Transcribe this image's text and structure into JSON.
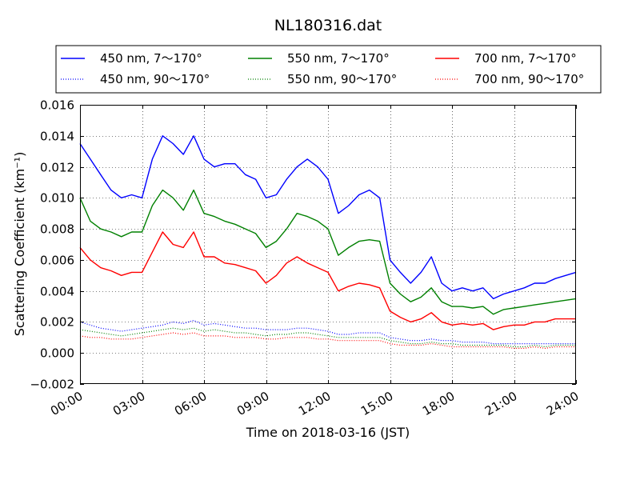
{
  "chart_data": {
    "type": "line",
    "title": "NL180316.dat",
    "xlabel": "Time on 2018-03-16 (JST)",
    "ylabel": "Scattering Coefficient (km⁻¹)",
    "xlim": [
      "00:00",
      "24:00"
    ],
    "ylim": [
      -0.002,
      0.016
    ],
    "x_ticks": [
      "00:00",
      "03:00",
      "06:00",
      "09:00",
      "12:00",
      "15:00",
      "18:00",
      "21:00",
      "24:00"
    ],
    "y_ticks": [
      "−0.002",
      "0.000",
      "0.002",
      "0.004",
      "0.006",
      "0.008",
      "0.010",
      "0.012",
      "0.014",
      "0.016"
    ],
    "grid": true,
    "legend_position": "top",
    "colors": {
      "450": "#0000ff",
      "550": "#008000",
      "700": "#ff0000"
    },
    "x": [
      "00:00",
      "00:30",
      "01:00",
      "01:30",
      "02:00",
      "02:30",
      "03:00",
      "03:30",
      "04:00",
      "04:30",
      "05:00",
      "05:30",
      "06:00",
      "06:30",
      "07:00",
      "07:30",
      "08:00",
      "08:30",
      "09:00",
      "09:30",
      "10:00",
      "10:30",
      "11:00",
      "11:30",
      "12:00",
      "12:30",
      "13:00",
      "13:30",
      "14:00",
      "14:30",
      "15:00",
      "15:30",
      "16:00",
      "16:30",
      "17:00",
      "17:30",
      "18:00",
      "18:30",
      "19:00",
      "19:30",
      "20:00",
      "20:30",
      "21:00",
      "21:30",
      "22:00",
      "22:30",
      "23:00",
      "23:30",
      "24:00"
    ],
    "series": [
      {
        "name": "450 nm, 7～170°",
        "style": "solid",
        "color": "#0000ff",
        "values": [
          0.0135,
          0.0125,
          0.0115,
          0.0105,
          0.01,
          0.0102,
          0.01,
          0.0125,
          0.014,
          0.0135,
          0.0128,
          0.014,
          0.0125,
          0.012,
          0.0122,
          0.0122,
          0.0115,
          0.0112,
          0.01,
          0.0102,
          0.0112,
          0.012,
          0.0125,
          0.012,
          0.0112,
          0.009,
          0.0095,
          0.0102,
          0.0105,
          0.01,
          0.006,
          0.0052,
          0.0045,
          0.0052,
          0.0062,
          0.0045,
          0.004,
          0.0042,
          0.004,
          0.0042,
          0.0035,
          0.0038,
          0.004,
          0.0042,
          0.0045,
          0.0045,
          0.0048,
          0.005,
          0.0052
        ]
      },
      {
        "name": "450 nm, 90～170°",
        "style": "dotted",
        "color": "#0000ff",
        "values": [
          0.002,
          0.0018,
          0.0016,
          0.0015,
          0.0014,
          0.0015,
          0.0016,
          0.0017,
          0.0018,
          0.002,
          0.0019,
          0.0021,
          0.0018,
          0.0019,
          0.0018,
          0.0017,
          0.0016,
          0.0016,
          0.0015,
          0.0015,
          0.0015,
          0.0016,
          0.0016,
          0.0015,
          0.0014,
          0.0012,
          0.0012,
          0.0013,
          0.0013,
          0.0013,
          0.001,
          0.0009,
          0.0008,
          0.0008,
          0.0009,
          0.0008,
          0.0008,
          0.0007,
          0.0007,
          0.0007,
          0.0006,
          0.0006,
          0.0006,
          0.0006,
          0.0006,
          0.0006,
          0.0006,
          0.0006,
          0.0006
        ]
      },
      {
        "name": "550 nm, 7～170°",
        "style": "solid",
        "color": "#008000",
        "values": [
          0.01,
          0.0085,
          0.008,
          0.0078,
          0.0075,
          0.0078,
          0.0078,
          0.0095,
          0.0105,
          0.01,
          0.0092,
          0.0105,
          0.009,
          0.0088,
          0.0085,
          0.0083,
          0.008,
          0.0077,
          0.0068,
          0.0072,
          0.008,
          0.009,
          0.0088,
          0.0085,
          0.008,
          0.0063,
          0.0068,
          0.0072,
          0.0073,
          0.0072,
          0.0045,
          0.0038,
          0.0033,
          0.0036,
          0.0042,
          0.0033,
          0.003,
          0.003,
          0.0029,
          0.003,
          0.0025,
          0.0028,
          0.0029,
          0.003,
          0.0031,
          0.0032,
          0.0033,
          0.0034,
          0.0035
        ]
      },
      {
        "name": "550 nm, 90～170°",
        "style": "dotted",
        "color": "#008000",
        "values": [
          0.0015,
          0.0014,
          0.0013,
          0.0012,
          0.0011,
          0.0012,
          0.0013,
          0.0014,
          0.0015,
          0.0016,
          0.0015,
          0.0016,
          0.0014,
          0.0015,
          0.0014,
          0.0013,
          0.0013,
          0.0012,
          0.0011,
          0.0012,
          0.0012,
          0.0013,
          0.0013,
          0.0012,
          0.0011,
          0.001,
          0.001,
          0.001,
          0.001,
          0.001,
          0.0008,
          0.0007,
          0.0006,
          0.0006,
          0.0007,
          0.0006,
          0.0006,
          0.0005,
          0.0005,
          0.0005,
          0.0005,
          0.0005,
          0.0004,
          0.0004,
          0.0005,
          0.0004,
          0.0005,
          0.0005,
          0.0005
        ]
      },
      {
        "name": "700 nm, 7～170°",
        "style": "solid",
        "color": "#ff0000",
        "values": [
          0.0068,
          0.006,
          0.0055,
          0.0053,
          0.005,
          0.0052,
          0.0052,
          0.0065,
          0.0078,
          0.007,
          0.0068,
          0.0078,
          0.0062,
          0.0062,
          0.0058,
          0.0057,
          0.0055,
          0.0053,
          0.0045,
          0.005,
          0.0058,
          0.0062,
          0.0058,
          0.0055,
          0.0052,
          0.004,
          0.0043,
          0.0045,
          0.0044,
          0.0042,
          0.0027,
          0.0023,
          0.002,
          0.0022,
          0.0026,
          0.002,
          0.0018,
          0.0019,
          0.0018,
          0.0019,
          0.0015,
          0.0017,
          0.0018,
          0.0018,
          0.002,
          0.002,
          0.0022,
          0.0022,
          0.0022
        ]
      },
      {
        "name": "700 nm, 90～170°",
        "style": "dotted",
        "color": "#ff0000",
        "values": [
          0.0011,
          0.001,
          0.001,
          0.0009,
          0.0009,
          0.0009,
          0.001,
          0.0011,
          0.0012,
          0.0013,
          0.0012,
          0.0013,
          0.0011,
          0.0011,
          0.0011,
          0.001,
          0.001,
          0.001,
          0.0009,
          0.0009,
          0.001,
          0.001,
          0.001,
          0.0009,
          0.0009,
          0.0008,
          0.0008,
          0.0008,
          0.0008,
          0.0008,
          0.0006,
          0.0005,
          0.0005,
          0.0005,
          0.0006,
          0.0005,
          0.0004,
          0.0004,
          0.0004,
          0.0004,
          0.0004,
          0.0004,
          0.0003,
          0.0003,
          0.0004,
          0.0003,
          0.0004,
          0.0004,
          0.0004
        ]
      }
    ]
  }
}
